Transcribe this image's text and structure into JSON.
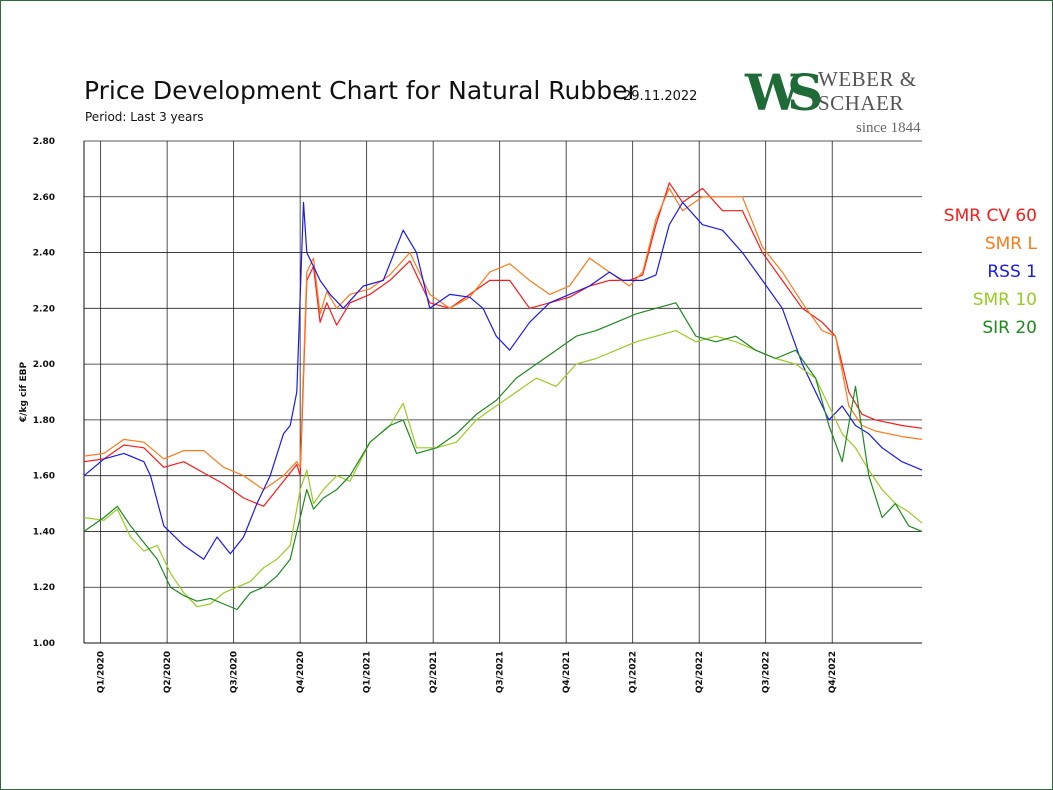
{
  "header": {
    "title": "Price Development Chart for Natural Rubber",
    "date": "29.11.2022",
    "subtitle": "Period: Last 3 years"
  },
  "logo": {
    "mark": "WS",
    "name_line1": "WEBER &",
    "name_line2": "SCHAER",
    "since": "since 1844",
    "color": "#1f6b38"
  },
  "chart_data": {
    "type": "line",
    "ylabel": "€/kg cif EBP",
    "ylim": [
      1.0,
      2.8
    ],
    "y_ticks": [
      "1.00",
      "1.20",
      "1.40",
      "1.60",
      "1.80",
      "2.00",
      "2.20",
      "2.40",
      "2.60",
      "2.80"
    ],
    "x_ticks": [
      "Q1/2020",
      "Q2/2020",
      "Q3/2020",
      "Q4/2020",
      "Q1/2021",
      "Q2/2021",
      "Q3/2021",
      "Q4/2021",
      "Q1/2022",
      "Q2/2022",
      "Q3/2022",
      "Q4/2022"
    ],
    "x_tick_positions": [
      0.25,
      1.25,
      2.25,
      3.25,
      4.25,
      5.25,
      6.25,
      7.25,
      8.25,
      9.25,
      10.25,
      11.25
    ],
    "x_range": [
      0,
      12.6
    ],
    "grid": true,
    "legend_position": "right",
    "series": [
      {
        "name": "SMR CV 60",
        "color": "#ff1a1a",
        "x": [
          0,
          0.3,
          0.6,
          0.9,
          1.2,
          1.5,
          1.8,
          2.1,
          2.4,
          2.7,
          3.0,
          3.2,
          3.25,
          3.35,
          3.45,
          3.55,
          3.65,
          3.8,
          4.0,
          4.3,
          4.6,
          4.9,
          5.2,
          5.5,
          5.8,
          6.1,
          6.4,
          6.7,
          7.0,
          7.3,
          7.6,
          7.9,
          8.2,
          8.4,
          8.6,
          8.8,
          9.0,
          9.3,
          9.6,
          9.9,
          10.2,
          10.5,
          10.8,
          11.1,
          11.3,
          11.5,
          11.7,
          11.9,
          12.1,
          12.3,
          12.6
        ],
        "values": [
          1.65,
          1.66,
          1.71,
          1.7,
          1.63,
          1.65,
          1.61,
          1.57,
          1.52,
          1.49,
          1.58,
          1.64,
          1.6,
          2.3,
          2.35,
          2.15,
          2.22,
          2.14,
          2.22,
          2.25,
          2.3,
          2.37,
          2.22,
          2.2,
          2.25,
          2.3,
          2.3,
          2.2,
          2.22,
          2.24,
          2.28,
          2.3,
          2.3,
          2.32,
          2.5,
          2.65,
          2.58,
          2.63,
          2.55,
          2.55,
          2.4,
          2.3,
          2.2,
          2.15,
          2.1,
          1.9,
          1.82,
          1.8,
          1.79,
          1.78,
          1.77
        ]
      },
      {
        "name": "SMR L",
        "color": "#ff7a1a",
        "x": [
          0,
          0.3,
          0.6,
          0.9,
          1.2,
          1.5,
          1.8,
          2.1,
          2.4,
          2.7,
          3.0,
          3.2,
          3.25,
          3.35,
          3.45,
          3.55,
          3.65,
          3.8,
          4.0,
          4.3,
          4.6,
          4.9,
          5.2,
          5.5,
          5.8,
          6.1,
          6.4,
          6.7,
          7.0,
          7.3,
          7.6,
          7.9,
          8.2,
          8.4,
          8.6,
          8.8,
          9.0,
          9.3,
          9.6,
          9.9,
          10.2,
          10.5,
          10.8,
          11.1,
          11.3,
          11.5,
          11.7,
          11.9,
          12.1,
          12.3,
          12.6
        ],
        "values": [
          1.67,
          1.68,
          1.73,
          1.72,
          1.66,
          1.69,
          1.69,
          1.63,
          1.6,
          1.55,
          1.6,
          1.65,
          1.63,
          2.33,
          2.38,
          2.18,
          2.26,
          2.2,
          2.25,
          2.27,
          2.32,
          2.4,
          2.25,
          2.2,
          2.24,
          2.33,
          2.36,
          2.3,
          2.25,
          2.28,
          2.38,
          2.33,
          2.28,
          2.33,
          2.52,
          2.63,
          2.55,
          2.6,
          2.6,
          2.6,
          2.42,
          2.33,
          2.22,
          2.12,
          2.1,
          1.85,
          1.78,
          1.76,
          1.75,
          1.74,
          1.73
        ]
      },
      {
        "name": "RSS 1",
        "color": "#1a1aee",
        "x": [
          0,
          0.3,
          0.6,
          0.9,
          1.0,
          1.2,
          1.5,
          1.8,
          2.0,
          2.2,
          2.4,
          2.6,
          2.8,
          3.0,
          3.1,
          3.2,
          3.3,
          3.35,
          3.45,
          3.55,
          3.7,
          3.9,
          4.2,
          4.5,
          4.8,
          5.0,
          5.2,
          5.5,
          5.8,
          6.0,
          6.2,
          6.4,
          6.7,
          7.0,
          7.3,
          7.6,
          7.9,
          8.1,
          8.4,
          8.6,
          8.8,
          9.0,
          9.3,
          9.6,
          9.9,
          10.2,
          10.5,
          10.8,
          11.0,
          11.2,
          11.4,
          11.6,
          11.8,
          12.0,
          12.3,
          12.6
        ],
        "values": [
          1.6,
          1.66,
          1.68,
          1.65,
          1.6,
          1.42,
          1.35,
          1.3,
          1.38,
          1.32,
          1.38,
          1.5,
          1.6,
          1.75,
          1.78,
          1.9,
          2.58,
          2.4,
          2.35,
          2.3,
          2.25,
          2.2,
          2.28,
          2.3,
          2.48,
          2.4,
          2.2,
          2.25,
          2.24,
          2.2,
          2.1,
          2.05,
          2.15,
          2.22,
          2.25,
          2.28,
          2.33,
          2.3,
          2.3,
          2.32,
          2.5,
          2.58,
          2.5,
          2.48,
          2.4,
          2.3,
          2.2,
          2.0,
          1.9,
          1.8,
          1.85,
          1.78,
          1.75,
          1.7,
          1.65,
          1.62
        ]
      },
      {
        "name": "SMR 10",
        "color": "#99cc22",
        "x": [
          0,
          0.3,
          0.5,
          0.7,
          0.9,
          1.1,
          1.3,
          1.5,
          1.7,
          1.9,
          2.1,
          2.3,
          2.5,
          2.7,
          2.9,
          3.1,
          3.25,
          3.35,
          3.45,
          3.6,
          3.8,
          4.0,
          4.3,
          4.6,
          4.8,
          5.0,
          5.3,
          5.6,
          5.9,
          6.2,
          6.5,
          6.8,
          7.1,
          7.4,
          7.7,
          8.0,
          8.3,
          8.6,
          8.9,
          9.2,
          9.5,
          9.8,
          10.1,
          10.4,
          10.7,
          11.0,
          11.2,
          11.4,
          11.6,
          11.8,
          12.0,
          12.2,
          12.4,
          12.6
        ],
        "values": [
          1.45,
          1.44,
          1.48,
          1.38,
          1.33,
          1.35,
          1.25,
          1.18,
          1.13,
          1.14,
          1.18,
          1.2,
          1.22,
          1.27,
          1.3,
          1.35,
          1.55,
          1.62,
          1.5,
          1.55,
          1.6,
          1.58,
          1.72,
          1.78,
          1.86,
          1.7,
          1.7,
          1.72,
          1.8,
          1.85,
          1.9,
          1.95,
          1.92,
          2.0,
          2.02,
          2.05,
          2.08,
          2.1,
          2.12,
          2.08,
          2.1,
          2.08,
          2.05,
          2.02,
          2.0,
          1.95,
          1.85,
          1.75,
          1.7,
          1.62,
          1.55,
          1.5,
          1.47,
          1.43
        ]
      },
      {
        "name": "SIR 20",
        "color": "#1e8a1e",
        "x": [
          0,
          0.3,
          0.5,
          0.7,
          0.9,
          1.1,
          1.3,
          1.5,
          1.7,
          1.9,
          2.1,
          2.3,
          2.5,
          2.7,
          2.9,
          3.1,
          3.25,
          3.35,
          3.45,
          3.6,
          3.8,
          4.0,
          4.3,
          4.6,
          4.8,
          5.0,
          5.3,
          5.6,
          5.9,
          6.2,
          6.5,
          6.8,
          7.1,
          7.4,
          7.7,
          8.0,
          8.3,
          8.6,
          8.9,
          9.2,
          9.5,
          9.8,
          10.1,
          10.4,
          10.7,
          11.0,
          11.2,
          11.4,
          11.6,
          11.8,
          12.0,
          12.2,
          12.4,
          12.6
        ],
        "values": [
          1.4,
          1.45,
          1.49,
          1.42,
          1.36,
          1.3,
          1.2,
          1.17,
          1.15,
          1.16,
          1.14,
          1.12,
          1.18,
          1.2,
          1.24,
          1.3,
          1.45,
          1.55,
          1.48,
          1.52,
          1.55,
          1.6,
          1.72,
          1.78,
          1.8,
          1.68,
          1.7,
          1.75,
          1.82,
          1.87,
          1.95,
          2.0,
          2.05,
          2.1,
          2.12,
          2.15,
          2.18,
          2.2,
          2.22,
          2.1,
          2.08,
          2.1,
          2.05,
          2.02,
          2.05,
          1.95,
          1.78,
          1.65,
          1.92,
          1.6,
          1.45,
          1.5,
          1.42,
          1.4
        ]
      }
    ]
  }
}
